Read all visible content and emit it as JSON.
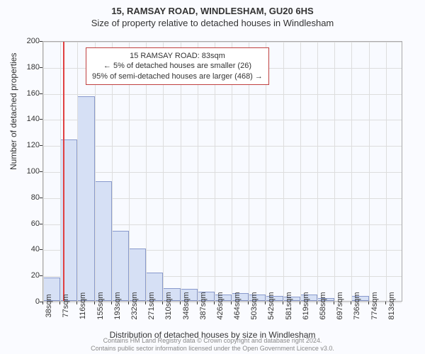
{
  "header": {
    "main_title": "15, RAMSAY ROAD, WINDLESHAM, GU20 6HS",
    "sub_title": "Size of property relative to detached houses in Windlesham"
  },
  "chart": {
    "type": "histogram",
    "background_color": "#f8faff",
    "bar_color": "#d6e0f5",
    "bar_border_color": "#8899cc",
    "grid_color": "#dddddd",
    "marker_color": "#e04040",
    "y_axis": {
      "title": "Number of detached properties",
      "min": 0,
      "max": 200,
      "tick_step": 20,
      "ticks": [
        0,
        20,
        40,
        60,
        80,
        100,
        120,
        140,
        160,
        180,
        200
      ]
    },
    "x_axis": {
      "title": "Distribution of detached houses by size in Windlesham",
      "tick_labels": [
        "38sqm",
        "77sqm",
        "116sqm",
        "155sqm",
        "193sqm",
        "232sqm",
        "271sqm",
        "310sqm",
        "348sqm",
        "387sqm",
        "426sqm",
        "464sqm",
        "503sqm",
        "542sqm",
        "581sqm",
        "619sqm",
        "658sqm",
        "697sqm",
        "736sqm",
        "774sqm",
        "813sqm"
      ]
    },
    "bars": [
      {
        "value": 18
      },
      {
        "value": 124
      },
      {
        "value": 157
      },
      {
        "value": 92
      },
      {
        "value": 54
      },
      {
        "value": 40
      },
      {
        "value": 22
      },
      {
        "value": 10
      },
      {
        "value": 9
      },
      {
        "value": 7
      },
      {
        "value": 5
      },
      {
        "value": 6
      },
      {
        "value": 5
      },
      {
        "value": 4
      },
      {
        "value": 3
      },
      {
        "value": 5
      },
      {
        "value": 2
      },
      {
        "value": 0
      },
      {
        "value": 4
      },
      {
        "value": 0
      },
      {
        "value": 0
      }
    ],
    "marker_position_bin": 1.15,
    "annotation": {
      "line1": "15 RAMSAY ROAD: 83sqm",
      "line2": "← 5% of detached houses are smaller (26)",
      "line3": "95% of semi-detached houses are larger (468) →"
    }
  },
  "footer": {
    "line1": "Contains HM Land Registry data © Crown copyright and database right 2024.",
    "line2": "Contains public sector information licensed under the Open Government Licence v3.0."
  }
}
